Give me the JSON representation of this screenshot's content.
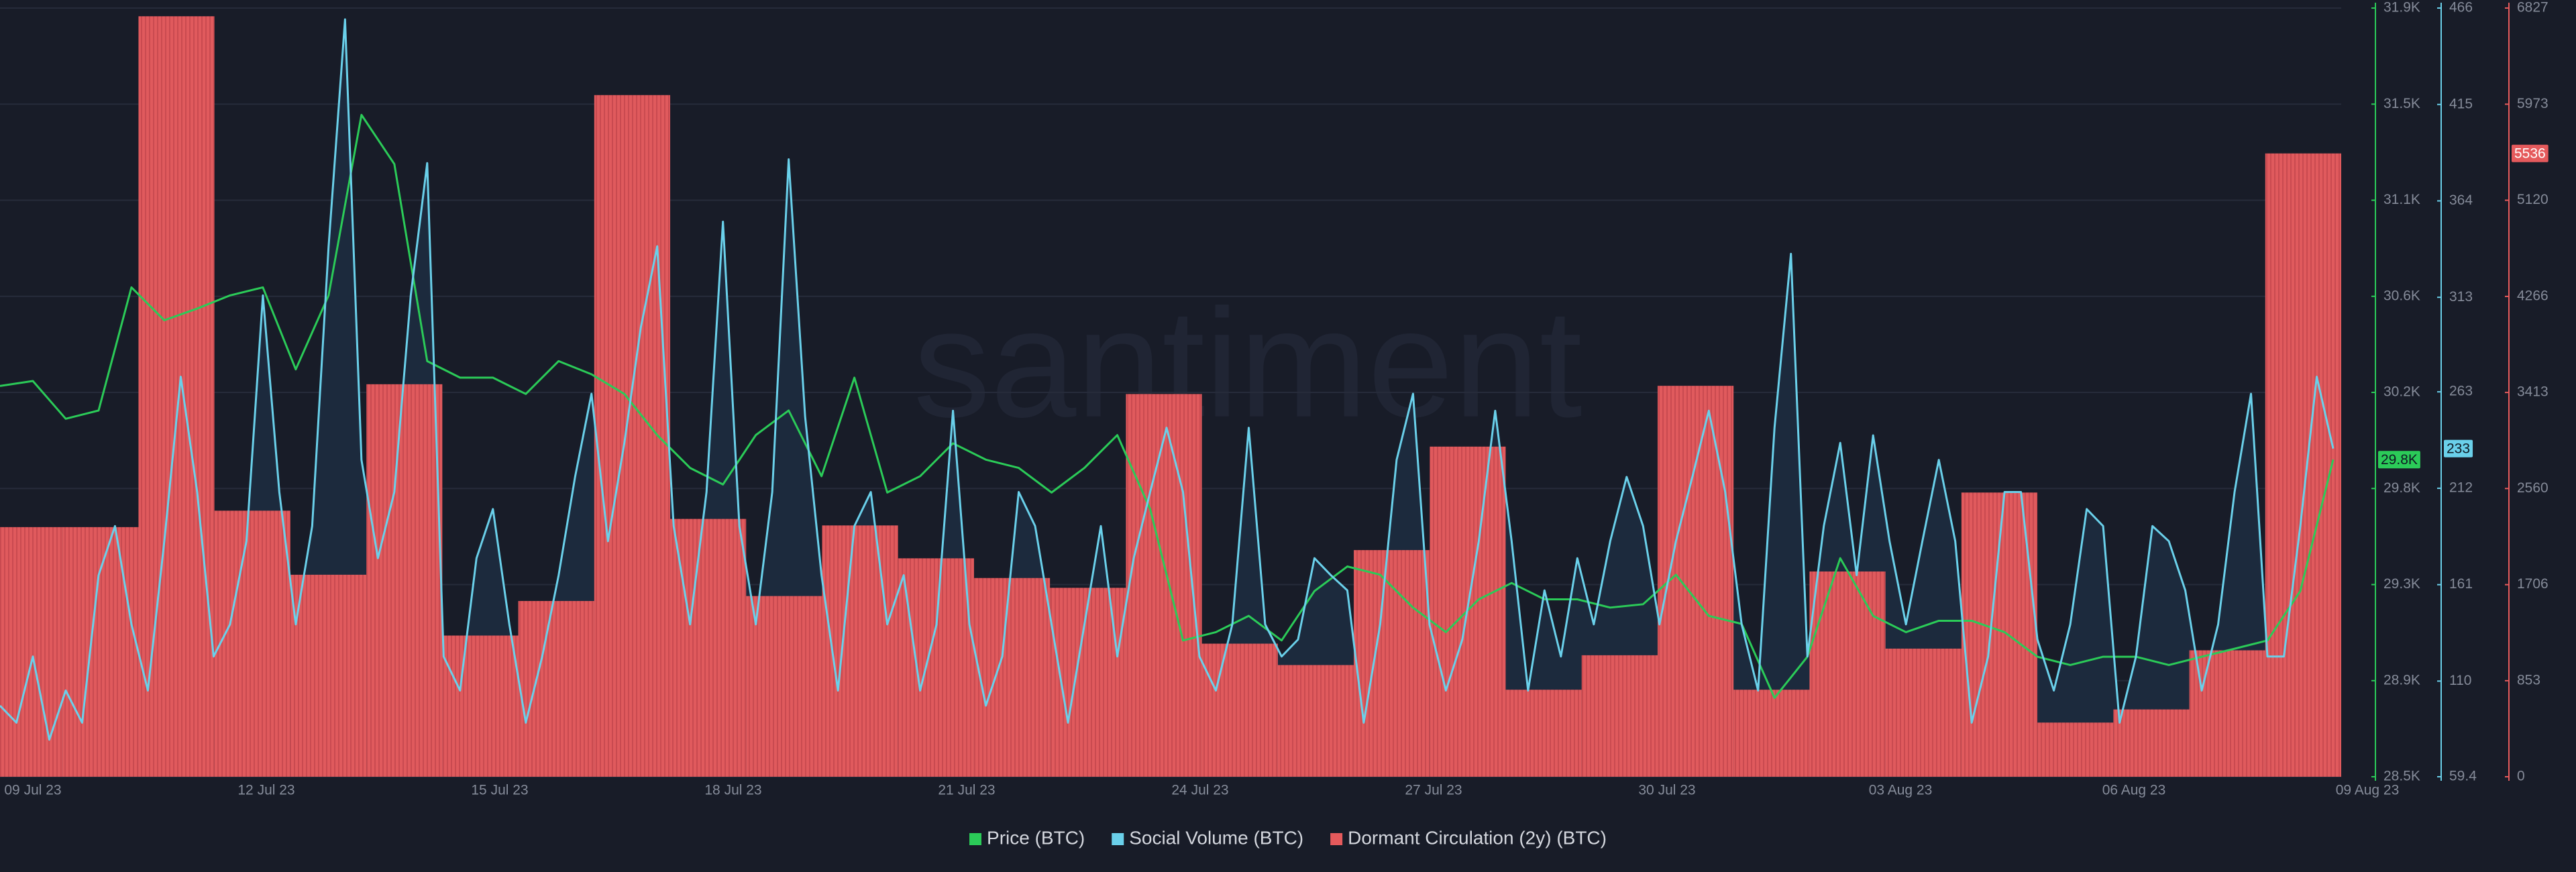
{
  "chart_data": {
    "type": "line",
    "watermark": "santiment",
    "xticks": [
      "09 Jul 23",
      "12 Jul 23",
      "15 Jul 23",
      "18 Jul 23",
      "21 Jul 23",
      "24 Jul 23",
      "27 Jul 23",
      "30 Jul 23",
      "03 Aug 23",
      "06 Aug 23",
      "09 Aug 23"
    ],
    "ylim": [
      28480,
      31920
    ],
    "yticks": [
      {
        "value": 28480,
        "label": "28.5K"
      },
      {
        "value": 28910,
        "label": "28.9K"
      },
      {
        "value": 29340,
        "label": "29.3K"
      },
      {
        "value": 29770,
        "label": "29.8K"
      },
      {
        "value": 30200,
        "label": "30.2K"
      },
      {
        "value": 30630,
        "label": "30.6K"
      },
      {
        "value": 31060,
        "label": "31.1K"
      },
      {
        "value": 31490,
        "label": "31.5K"
      },
      {
        "value": 31920,
        "label": "31.9K"
      }
    ],
    "y2lim": [
      59.4,
      466
    ],
    "y2ticks": [
      59.4,
      110,
      161,
      212,
      263,
      313,
      364,
      415,
      466
    ],
    "y3lim": [
      0,
      6827
    ],
    "y3ticks": [
      0,
      853,
      1706,
      2560,
      3413,
      4266,
      5120,
      5973,
      6827
    ],
    "grid": true,
    "series": [
      {
        "name": "Price (BTC)",
        "color": "#2bcb58",
        "type": "line",
        "axis": "y",
        "badge": "29.8K",
        "values": [
          30229,
          30251,
          30082,
          30119,
          30670,
          30523,
          30575,
          30634,
          30670,
          30303,
          30634,
          31442,
          31222,
          30340,
          30266,
          30266,
          30193,
          30340,
          30281,
          30193,
          30009,
          29862,
          29788,
          30009,
          30119,
          29825,
          30266,
          29752,
          29825,
          29972,
          29899,
          29862,
          29752,
          29862,
          30009,
          29678,
          29090,
          29127,
          29200,
          29090,
          29311,
          29421,
          29384,
          29237,
          29127,
          29274,
          29347,
          29274,
          29274,
          29237,
          29252,
          29384,
          29200,
          29164,
          28833,
          29017,
          29458,
          29200,
          29127,
          29178,
          29178,
          29127,
          29017,
          28980,
          29017,
          29017,
          28980,
          29017,
          29053,
          29090,
          29311,
          29899
        ]
      },
      {
        "name": "Social Volume (BTC)",
        "color": "#6ad0ea",
        "type": "area",
        "axis": "y2",
        "badge": "233",
        "values": [
          97,
          88,
          123,
          79,
          105,
          88,
          166,
          192,
          140,
          105,
          184,
          271,
          210,
          123,
          140,
          184,
          314,
          210,
          140,
          192,
          340,
          460,
          227,
          175,
          210,
          314,
          384,
          123,
          105,
          175,
          201,
          140,
          88,
          123,
          166,
          218,
          262,
          184,
          236,
          297,
          340,
          192,
          140,
          210,
          353,
          192,
          140,
          210,
          386,
          250,
          166,
          105,
          192,
          210,
          140,
          166,
          105,
          140,
          253,
          140,
          97,
          123,
          210,
          192,
          140,
          88,
          140,
          192,
          123,
          175,
          210,
          244,
          210,
          123,
          105,
          140,
          244,
          140,
          123,
          132,
          175,
          166,
          158,
          88,
          140,
          227,
          262,
          140,
          105,
          132,
          184,
          253,
          184,
          105,
          158,
          123,
          175,
          140,
          184,
          218,
          192,
          140,
          184,
          218,
          253,
          210,
          140,
          105,
          244,
          336,
          123,
          192,
          236,
          166,
          240,
          184,
          140,
          184,
          227,
          184,
          88,
          123,
          210,
          210,
          132,
          105,
          140,
          201,
          192,
          88,
          123,
          192,
          184,
          158,
          105,
          140,
          210,
          262,
          123,
          123,
          192,
          271,
          233
        ]
      },
      {
        "name": "Dormant Circulation (2y) (BTC)",
        "color": "#e55a5c",
        "type": "bar",
        "axis": "y3",
        "badge": "5536",
        "values": [
          2217,
          2217,
          6754,
          2363,
          1794,
          3486,
          1254,
          1561,
          6054,
          2290,
          1605,
          2232,
          1940,
          1765,
          1678,
          3399,
          1182,
          992,
          2013,
          2932,
          773,
          1079,
          3472,
          773,
          1823,
          1138,
          2524,
          481,
          598,
          1123,
          5536
        ]
      }
    ]
  }
}
